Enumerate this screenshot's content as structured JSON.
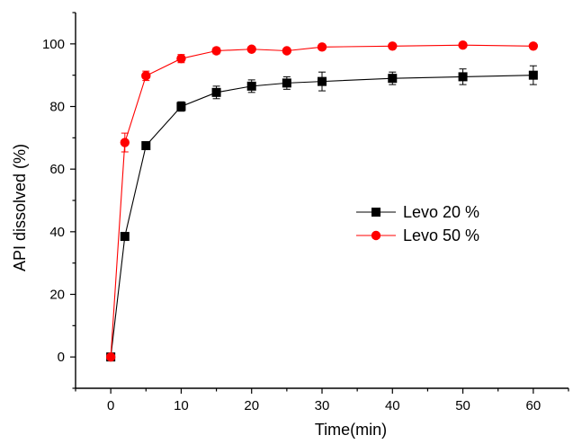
{
  "chart_data": {
    "type": "line",
    "xlabel": "Time(min)",
    "ylabel": "API dissolved (%)",
    "xlim": [
      -5,
      65
    ],
    "ylim": [
      -10,
      110
    ],
    "xticks": [
      0,
      10,
      20,
      30,
      40,
      50,
      60
    ],
    "yticks": [
      0,
      20,
      40,
      60,
      80,
      100
    ],
    "grid": false,
    "legend_position": "center-right",
    "series": [
      {
        "name": "Levo 20 %",
        "color": "#000000",
        "marker": "square",
        "x": [
          0,
          2,
          5,
          10,
          15,
          20,
          25,
          30,
          40,
          50,
          60
        ],
        "y": [
          0,
          38.5,
          67.5,
          80.0,
          84.5,
          86.5,
          87.5,
          88.0,
          89.0,
          89.5,
          90.0
        ],
        "error": [
          0,
          0,
          0,
          1.5,
          2.0,
          2.0,
          2.0,
          3.0,
          2.0,
          2.5,
          3.0
        ]
      },
      {
        "name": "Levo 50 %",
        "color": "#ff0000",
        "marker": "circle",
        "x": [
          0,
          2,
          5,
          10,
          15,
          20,
          25,
          30,
          40,
          50,
          60
        ],
        "y": [
          0,
          68.5,
          89.8,
          95.3,
          97.8,
          98.3,
          97.8,
          99.0,
          99.3,
          99.6,
          99.3
        ],
        "error": [
          0,
          3.0,
          1.5,
          1.3,
          1.0,
          0.8,
          0.8,
          0.8,
          0.6,
          0.6,
          0.6
        ]
      }
    ]
  }
}
